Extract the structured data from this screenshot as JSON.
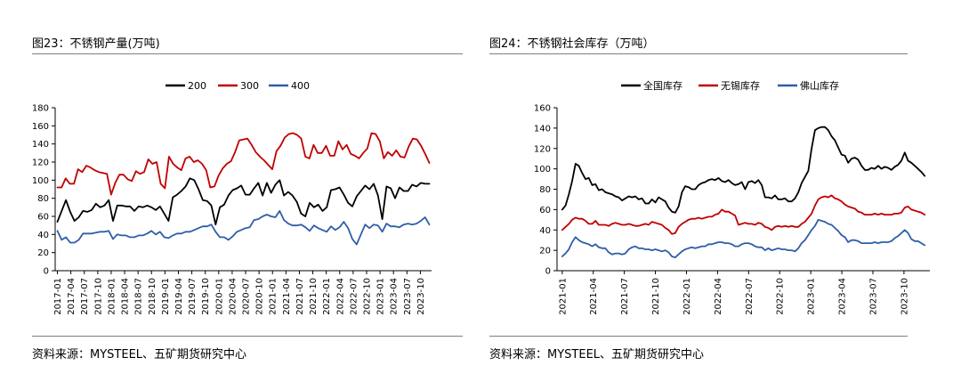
{
  "figures": [
    {
      "title": "图23：不锈钢产量(万吨)",
      "source": "资料来源：MYSTEEL、五矿期货研究中心"
    },
    {
      "title": "图24：不锈钢社会库存（万吨）",
      "source": "资料来源：MYSTEEL、五矿期货研究中心"
    }
  ],
  "chart_data": [
    {
      "type": "line",
      "title": "",
      "xlabel": "",
      "ylabel": "",
      "ylim": [
        0,
        180
      ],
      "yticks": [
        0,
        20,
        40,
        60,
        80,
        100,
        120,
        140,
        160,
        180
      ],
      "x_start": "2017-01",
      "x_end": "2023-12",
      "x_tick_labels": [
        "2017-01",
        "2017-04",
        "2017-07",
        "2017-10",
        "2018-01",
        "2018-04",
        "2018-07",
        "2018-10",
        "2019-01",
        "2019-04",
        "2019-07",
        "2019-10",
        "2020-01",
        "2020-04",
        "2020-07",
        "2020-10",
        "2021-01",
        "2021-04",
        "2021-07",
        "2021-10",
        "2022-01",
        "2022-04",
        "2022-07",
        "2022-10",
        "2023-01",
        "2023-04",
        "2023-07",
        "2023-10"
      ],
      "legend": "top-center",
      "grid": false,
      "series": [
        {
          "name": "200",
          "color": "#000000",
          "values": [
            54,
            66,
            78,
            65,
            55,
            59,
            66,
            65,
            67,
            74,
            70,
            72,
            78,
            55,
            72,
            72,
            71,
            71,
            66,
            71,
            70,
            72,
            70,
            67,
            71,
            63,
            55,
            81,
            84,
            88,
            93,
            102,
            100,
            90,
            78,
            77,
            72,
            51,
            70,
            73,
            83,
            89,
            91,
            94,
            84,
            84,
            91,
            97,
            83,
            97,
            86,
            95,
            100,
            83,
            87,
            83,
            76,
            63,
            60,
            75,
            70,
            73,
            66,
            70,
            89,
            90,
            92,
            84,
            75,
            71,
            82,
            88,
            94,
            90,
            96,
            83,
            57,
            93,
            91,
            80,
            92,
            88,
            88,
            95,
            93,
            97,
            96,
            96
          ]
        },
        {
          "name": "300",
          "color": "#c00000",
          "values": [
            92,
            92,
            102,
            96,
            96,
            112,
            109,
            116,
            114,
            111,
            109,
            108,
            107,
            84,
            97,
            106,
            106,
            101,
            99,
            110,
            107,
            109,
            123,
            118,
            120,
            96,
            91,
            126,
            118,
            114,
            111,
            124,
            126,
            120,
            122,
            118,
            111,
            92,
            93,
            105,
            113,
            118,
            121,
            131,
            144,
            145,
            146,
            139,
            131,
            126,
            122,
            117,
            112,
            132,
            138,
            147,
            151,
            152,
            150,
            146,
            126,
            124,
            139,
            130,
            130,
            138,
            127,
            127,
            143,
            134,
            139,
            129,
            127,
            124,
            130,
            135,
            152,
            151,
            143,
            124,
            131,
            127,
            133,
            126,
            125,
            137,
            146,
            145,
            138,
            129,
            119
          ]
        },
        {
          "name": "400",
          "color": "#2e5ea8",
          "values": [
            44,
            34,
            37,
            31,
            31,
            34,
            41,
            41,
            41,
            42,
            43,
            43,
            44,
            35,
            40,
            39,
            39,
            37,
            37,
            39,
            39,
            41,
            44,
            40,
            43,
            37,
            36,
            39,
            41,
            41,
            43,
            43,
            45,
            47,
            49,
            49,
            51,
            43,
            37,
            37,
            34,
            38,
            43,
            45,
            47,
            48,
            56,
            57,
            60,
            62,
            60,
            59,
            66,
            56,
            52,
            50,
            50,
            51,
            48,
            44,
            50,
            47,
            45,
            43,
            49,
            45,
            48,
            54,
            47,
            35,
            29,
            40,
            51,
            47,
            51,
            50,
            43,
            52,
            49,
            49,
            48,
            51,
            52,
            51,
            52,
            55,
            59,
            51
          ]
        }
      ]
    },
    {
      "type": "line",
      "title": "",
      "xlabel": "",
      "ylabel": "",
      "ylim": [
        0,
        160
      ],
      "yticks": [
        0,
        20,
        40,
        60,
        80,
        100,
        120,
        140,
        160
      ],
      "x_start": "2021-01",
      "x_end": "2023-12",
      "x_tick_labels": [
        "2021-01",
        "2021-04",
        "2021-07",
        "2021-10",
        "2022-01",
        "2022-04",
        "2022-07",
        "2022-10",
        "2023-01",
        "2023-04",
        "2023-07",
        "2023-10"
      ],
      "legend": "top-center",
      "grid": false,
      "series": [
        {
          "name": "全国库存",
          "color": "#000000",
          "values": [
            60,
            64,
            75,
            88,
            105,
            103,
            96,
            90,
            91,
            84,
            85,
            79,
            80,
            77,
            76,
            75,
            73,
            72,
            69,
            71,
            73,
            72,
            73,
            70,
            71,
            66,
            66,
            70,
            67,
            72,
            70,
            68,
            62,
            58,
            57,
            63,
            77,
            83,
            82,
            80,
            80,
            84,
            86,
            87,
            89,
            90,
            89,
            91,
            88,
            87,
            89,
            86,
            84,
            85,
            87,
            80,
            87,
            88,
            86,
            89,
            84,
            72,
            72,
            71,
            74,
            70,
            70,
            71,
            68,
            68,
            71,
            77,
            86,
            92,
            98,
            120,
            138,
            140,
            141,
            141,
            138,
            132,
            128,
            121,
            114,
            113,
            106,
            110,
            111,
            109,
            103,
            99,
            99,
            101,
            100,
            103,
            100,
            102,
            101,
            99,
            102,
            104,
            108,
            116,
            108,
            106,
            103,
            100,
            97,
            93
          ]
        },
        {
          "name": "无锡库存",
          "color": "#c00000",
          "values": [
            40,
            43,
            46,
            50,
            52,
            51,
            51,
            49,
            46,
            46,
            49,
            45,
            45,
            45,
            44,
            46,
            47,
            46,
            45,
            45,
            46,
            45,
            44,
            44,
            45,
            46,
            45,
            48,
            47,
            46,
            45,
            42,
            40,
            36,
            37,
            43,
            46,
            48,
            50,
            51,
            51,
            52,
            51,
            52,
            53,
            53,
            55,
            56,
            60,
            58,
            58,
            56,
            54,
            45,
            46,
            47,
            46,
            46,
            45,
            47,
            46,
            43,
            42,
            40,
            43,
            44,
            43,
            44,
            43,
            44,
            43,
            43,
            46,
            48,
            52,
            56,
            64,
            70,
            72,
            73,
            72,
            74,
            71,
            70,
            68,
            65,
            63,
            62,
            61,
            58,
            57,
            55,
            55,
            55,
            56,
            55,
            56,
            55,
            55,
            55,
            56,
            56,
            57,
            62,
            63,
            60,
            59,
            58,
            57,
            55
          ]
        },
        {
          "name": "佛山库存",
          "color": "#2e5ea8",
          "values": [
            14,
            17,
            21,
            28,
            33,
            30,
            28,
            27,
            26,
            24,
            26,
            23,
            22,
            22,
            18,
            16,
            17,
            17,
            16,
            17,
            21,
            23,
            24,
            22,
            22,
            21,
            21,
            20,
            21,
            20,
            19,
            20,
            18,
            14,
            13,
            16,
            19,
            21,
            22,
            23,
            22,
            23,
            24,
            24,
            26,
            26,
            27,
            28,
            28,
            27,
            27,
            26,
            24,
            24,
            26,
            27,
            27,
            26,
            24,
            23,
            23,
            20,
            22,
            20,
            21,
            22,
            21,
            21,
            20,
            20,
            19,
            22,
            27,
            30,
            35,
            40,
            44,
            50,
            49,
            48,
            46,
            45,
            42,
            39,
            35,
            33,
            28,
            30,
            30,
            29,
            27,
            27,
            27,
            27,
            28,
            27,
            28,
            28,
            28,
            29,
            32,
            34,
            37,
            40,
            37,
            31,
            29,
            29,
            27,
            25
          ]
        }
      ]
    }
  ]
}
